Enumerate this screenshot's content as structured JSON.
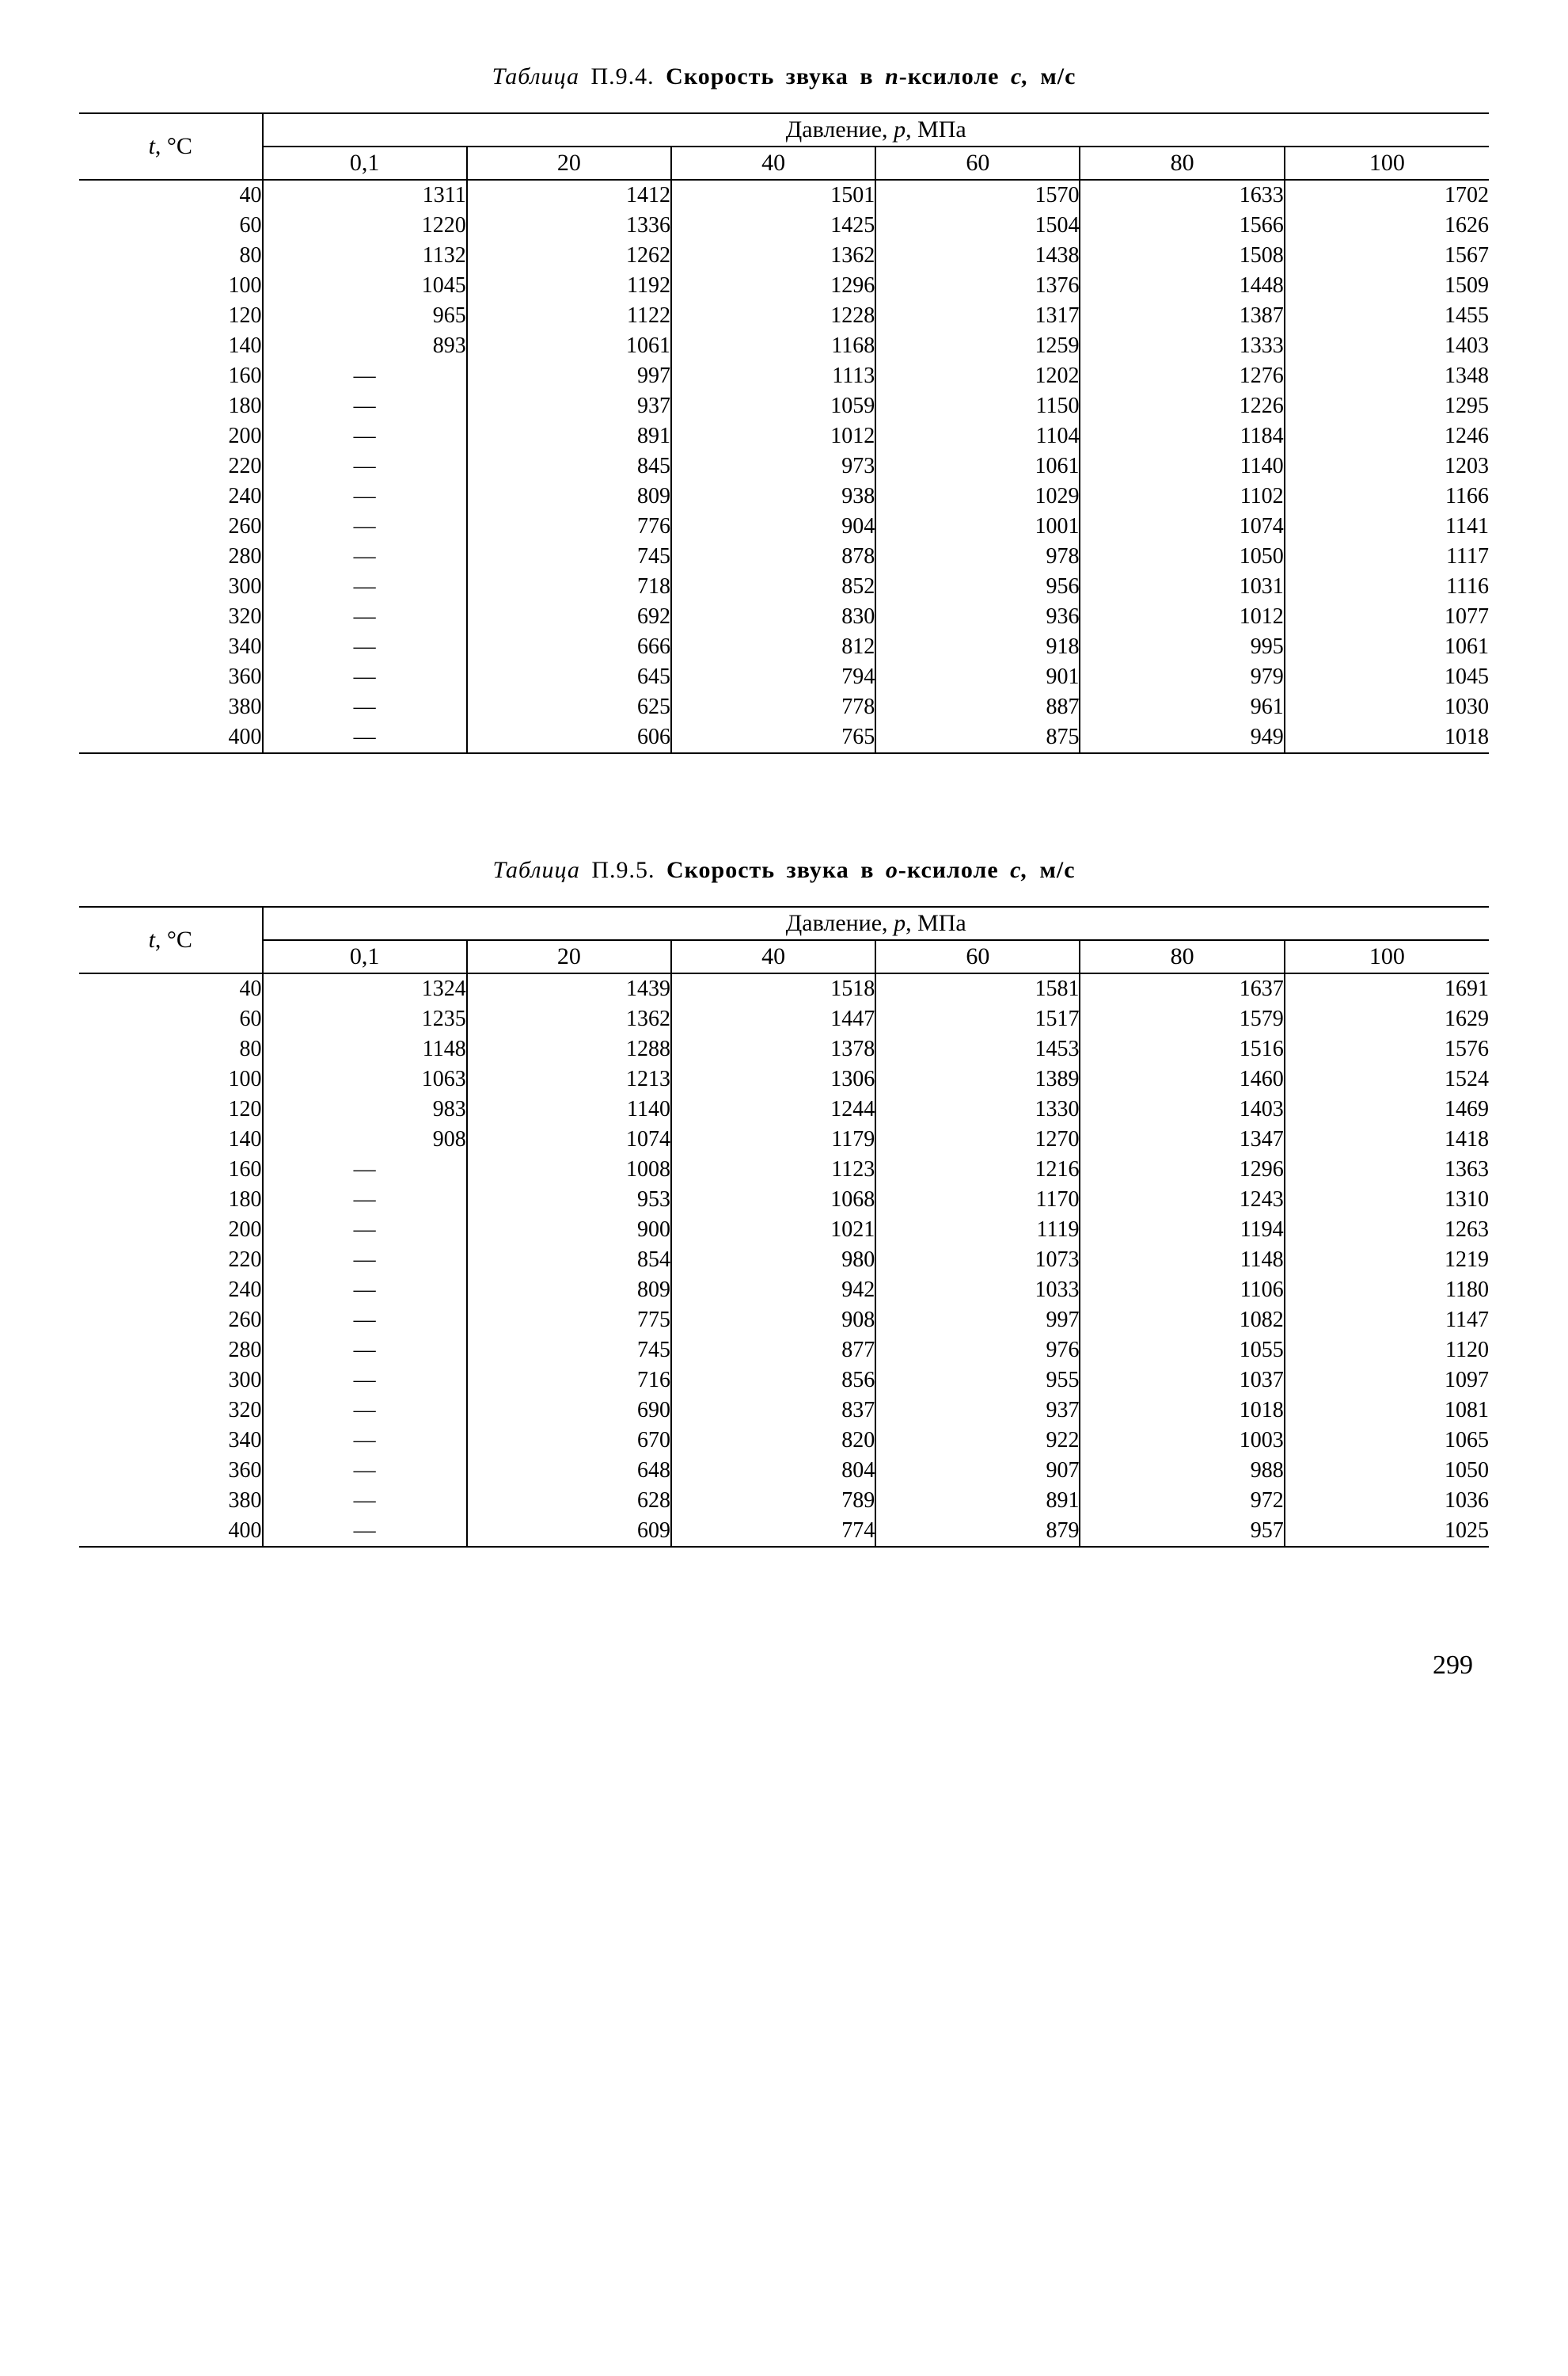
{
  "page_number": "299",
  "tables": [
    {
      "caption_label": "Таблица",
      "caption_number": "П.9.4.",
      "caption_bold_pre": "Скорость звука в ",
      "caption_subst": "п",
      "caption_bold_post": "-ксилоле ",
      "caption_symbol": "c, ",
      "caption_unit": "м/с",
      "row_header": "t, °C",
      "pressure_header": "Давление, p, МПа",
      "columns": [
        "0,1",
        "20",
        "40",
        "60",
        "80",
        "100"
      ],
      "rows": [
        {
          "t": "40",
          "v": [
            "1311",
            "1412",
            "1501",
            "1570",
            "1633",
            "1702"
          ]
        },
        {
          "t": "60",
          "v": [
            "1220",
            "1336",
            "1425",
            "1504",
            "1566",
            "1626"
          ]
        },
        {
          "t": "80",
          "v": [
            "1132",
            "1262",
            "1362",
            "1438",
            "1508",
            "1567"
          ]
        },
        {
          "t": "100",
          "v": [
            "1045",
            "1192",
            "1296",
            "1376",
            "1448",
            "1509"
          ]
        },
        {
          "t": "120",
          "v": [
            "965",
            "1122",
            "1228",
            "1317",
            "1387",
            "1455"
          ]
        },
        {
          "t": "140",
          "v": [
            "893",
            "1061",
            "1168",
            "1259",
            "1333",
            "1403"
          ]
        },
        {
          "t": "160",
          "v": [
            "—",
            "997",
            "1113",
            "1202",
            "1276",
            "1348"
          ]
        },
        {
          "t": "180",
          "v": [
            "—",
            "937",
            "1059",
            "1150",
            "1226",
            "1295"
          ]
        },
        {
          "t": "200",
          "v": [
            "—",
            "891",
            "1012",
            "1104",
            "1184",
            "1246"
          ]
        },
        {
          "t": "220",
          "v": [
            "—",
            "845",
            "973",
            "1061",
            "1140",
            "1203"
          ]
        },
        {
          "t": "240",
          "v": [
            "—",
            "809",
            "938",
            "1029",
            "1102",
            "1166"
          ]
        },
        {
          "t": "260",
          "v": [
            "—",
            "776",
            "904",
            "1001",
            "1074",
            "1141"
          ]
        },
        {
          "t": "280",
          "v": [
            "—",
            "745",
            "878",
            "978",
            "1050",
            "1117"
          ]
        },
        {
          "t": "300",
          "v": [
            "—",
            "718",
            "852",
            "956",
            "1031",
            "1116"
          ]
        },
        {
          "t": "320",
          "v": [
            "—",
            "692",
            "830",
            "936",
            "1012",
            "1077"
          ]
        },
        {
          "t": "340",
          "v": [
            "—",
            "666",
            "812",
            "918",
            "995",
            "1061"
          ]
        },
        {
          "t": "360",
          "v": [
            "—",
            "645",
            "794",
            "901",
            "979",
            "1045"
          ]
        },
        {
          "t": "380",
          "v": [
            "—",
            "625",
            "778",
            "887",
            "961",
            "1030"
          ]
        },
        {
          "t": "400",
          "v": [
            "—",
            "606",
            "765",
            "875",
            "949",
            "1018"
          ]
        }
      ]
    },
    {
      "caption_label": "Таблица",
      "caption_number": "П.9.5.",
      "caption_bold_pre": "Скорость звука в ",
      "caption_subst": "о",
      "caption_bold_post": "-ксилоле ",
      "caption_symbol": "c, ",
      "caption_unit": "м/с",
      "row_header": "t, °C",
      "pressure_header": "Давление, p, МПа",
      "columns": [
        "0,1",
        "20",
        "40",
        "60",
        "80",
        "100"
      ],
      "rows": [
        {
          "t": "40",
          "v": [
            "1324",
            "1439",
            "1518",
            "1581",
            "1637",
            "1691"
          ]
        },
        {
          "t": "60",
          "v": [
            "1235",
            "1362",
            "1447",
            "1517",
            "1579",
            "1629"
          ]
        },
        {
          "t": "80",
          "v": [
            "1148",
            "1288",
            "1378",
            "1453",
            "1516",
            "1576"
          ]
        },
        {
          "t": "100",
          "v": [
            "1063",
            "1213",
            "1306",
            "1389",
            "1460",
            "1524"
          ]
        },
        {
          "t": "120",
          "v": [
            "983",
            "1140",
            "1244",
            "1330",
            "1403",
            "1469"
          ]
        },
        {
          "t": "140",
          "v": [
            "908",
            "1074",
            "1179",
            "1270",
            "1347",
            "1418"
          ]
        },
        {
          "t": "160",
          "v": [
            "—",
            "1008",
            "1123",
            "1216",
            "1296",
            "1363"
          ]
        },
        {
          "t": "180",
          "v": [
            "—",
            "953",
            "1068",
            "1170",
            "1243",
            "1310"
          ]
        },
        {
          "t": "200",
          "v": [
            "—",
            "900",
            "1021",
            "1119",
            "1194",
            "1263"
          ]
        },
        {
          "t": "220",
          "v": [
            "—",
            "854",
            "980",
            "1073",
            "1148",
            "1219"
          ]
        },
        {
          "t": "240",
          "v": [
            "—",
            "809",
            "942",
            "1033",
            "1106",
            "1180"
          ]
        },
        {
          "t": "260",
          "v": [
            "—",
            "775",
            "908",
            "997",
            "1082",
            "1147"
          ]
        },
        {
          "t": "280",
          "v": [
            "—",
            "745",
            "877",
            "976",
            "1055",
            "1120"
          ]
        },
        {
          "t": "300",
          "v": [
            "—",
            "716",
            "856",
            "955",
            "1037",
            "1097"
          ]
        },
        {
          "t": "320",
          "v": [
            "—",
            "690",
            "837",
            "937",
            "1018",
            "1081"
          ]
        },
        {
          "t": "340",
          "v": [
            "—",
            "670",
            "820",
            "922",
            "1003",
            "1065"
          ]
        },
        {
          "t": "360",
          "v": [
            "—",
            "648",
            "804",
            "907",
            "988",
            "1050"
          ]
        },
        {
          "t": "380",
          "v": [
            "—",
            "628",
            "789",
            "891",
            "972",
            "1036"
          ]
        },
        {
          "t": "400",
          "v": [
            "—",
            "609",
            "774",
            "879",
            "957",
            "1025"
          ]
        }
      ]
    }
  ]
}
